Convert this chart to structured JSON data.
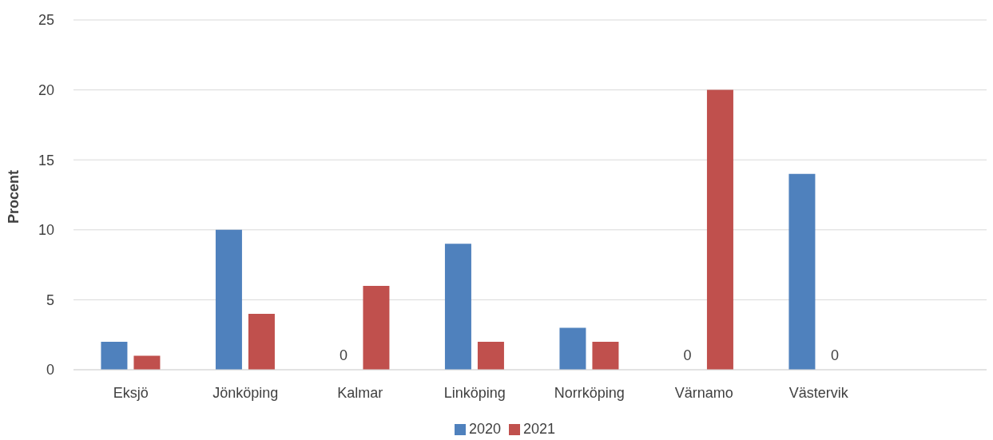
{
  "chart_data": {
    "type": "bar",
    "ylabel": "Procent",
    "categories": [
      "Eksjö",
      "Jönköping",
      "Kalmar",
      "Linköping",
      "Norrköping",
      "Värnamo",
      "Västervik",
      null
    ],
    "series": [
      {
        "name": "2020",
        "color": "#4f81bd",
        "values": [
          2,
          10,
          0,
          9,
          3,
          0,
          14,
          null
        ],
        "value_labels": [
          null,
          null,
          "0",
          null,
          null,
          "0",
          null,
          null
        ]
      },
      {
        "name": "2021",
        "color": "#c0504d",
        "values": [
          1,
          4,
          6,
          2,
          2,
          20,
          0,
          null
        ],
        "value_labels": [
          null,
          null,
          null,
          null,
          null,
          null,
          "0",
          null
        ]
      }
    ],
    "ylim": [
      0,
      25
    ],
    "yticks": [
      0,
      5,
      10,
      15,
      20,
      25
    ],
    "grid": "y",
    "legend": "bottom"
  }
}
